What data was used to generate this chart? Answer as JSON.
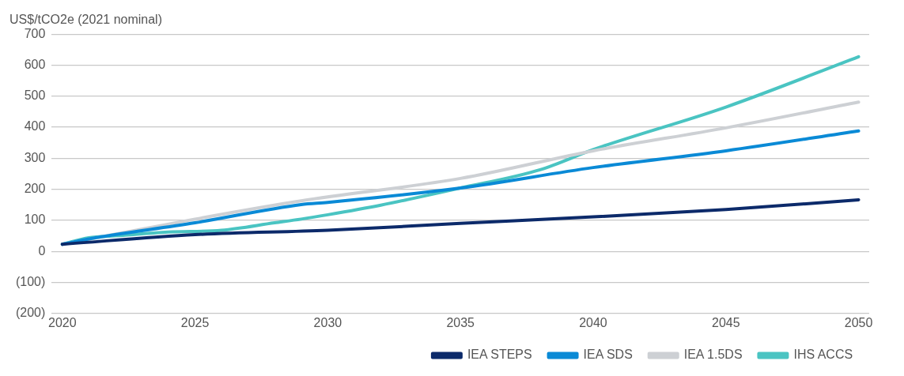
{
  "chart_data": {
    "type": "line",
    "ylabel": "US$/tCO2e (2021 nominal)",
    "xlim": [
      2019.6,
      2050.4
    ],
    "xticks": [
      2020,
      2025,
      2030,
      2035,
      2040,
      2045,
      2050
    ],
    "ylim": [
      -200,
      700
    ],
    "yticks": [
      {
        "value": -200,
        "label": "(200)"
      },
      {
        "value": -100,
        "label": "(100)"
      },
      0,
      100,
      200,
      300,
      400,
      500,
      600,
      700
    ],
    "grid": "y",
    "legend": "bottom right",
    "marker": "none",
    "line_style": "solid",
    "series": [
      {
        "name": "IEA STEPS",
        "color": "#0c2a6a",
        "x": [
          2020,
          2025,
          2030,
          2035,
          2040,
          2045,
          2050
        ],
        "values": [
          23,
          54,
          68,
          90,
          111,
          135,
          166
        ]
      },
      {
        "name": "IEA SDS",
        "color": "#0a8ad6",
        "x": [
          2020,
          2021,
          2025,
          2029,
          2030,
          2035,
          2040,
          2045,
          2050
        ],
        "values": [
          23,
          40,
          92,
          151,
          158,
          204,
          270,
          324,
          388
        ]
      },
      {
        "name": "IEA 1.5DS",
        "color": "#cdd0d4",
        "x": [
          2020,
          2025,
          2029,
          2035,
          2040,
          2045,
          2050
        ],
        "values": [
          23,
          104,
          163,
          235,
          324,
          398,
          481
        ]
      },
      {
        "name": "IHS ACCS",
        "color": "#4ac4c2",
        "x": [
          2020,
          2021,
          2022,
          2024,
          2026,
          2028,
          2029,
          2030,
          2032,
          2035,
          2038,
          2040,
          2045,
          2050
        ],
        "values": [
          23,
          44,
          50,
          62,
          68,
          92,
          104,
          118,
          149,
          204,
          263,
          328,
          465,
          627
        ]
      }
    ]
  }
}
